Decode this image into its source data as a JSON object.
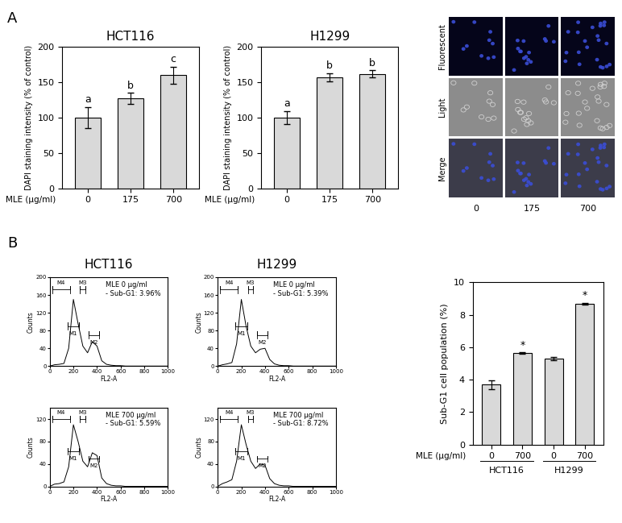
{
  "panel_labels": [
    "A",
    "B"
  ],
  "chart_data": [
    {
      "type": "bar",
      "title": "HCT116",
      "categories": [
        "0",
        "175",
        "700"
      ],
      "values": [
        100,
        127,
        160
      ],
      "error": [
        15,
        8,
        12
      ],
      "annotations": [
        "a",
        "b",
        "c"
      ],
      "xlabel": "MLE (µg/ml)",
      "ylabel": "DAPI staining intensity (% of control)",
      "ylim": [
        0,
        200
      ],
      "yticks": [
        0,
        50,
        100,
        150,
        200
      ],
      "color": "#d9d9d9"
    },
    {
      "type": "bar",
      "title": "H1299",
      "categories": [
        "0",
        "175",
        "700"
      ],
      "values": [
        100,
        157,
        162
      ],
      "error": [
        9,
        6,
        5
      ],
      "annotations": [
        "a",
        "b",
        "b"
      ],
      "xlabel": "MLE (µg/ml)",
      "ylabel": "DAPI staining intensity (% of control)",
      "ylim": [
        0,
        200
      ],
      "yticks": [
        0,
        50,
        100,
        150,
        200
      ],
      "color": "#d9d9d9"
    },
    {
      "type": "line",
      "title": "HCT116",
      "x": [
        0,
        40,
        80,
        120,
        160,
        200,
        240,
        280,
        320,
        360,
        400,
        440,
        480,
        520,
        560,
        600,
        640,
        680,
        720,
        760,
        800,
        840,
        880,
        920,
        960,
        1000
      ],
      "values": [
        0,
        3,
        4,
        6,
        40,
        150,
        95,
        45,
        30,
        55,
        45,
        12,
        4,
        2,
        1,
        1,
        0,
        0,
        0,
        0,
        0,
        0,
        0,
        0,
        0,
        0
      ],
      "color": "#000000",
      "xlim": [
        0,
        1000
      ],
      "xticks": [
        0,
        200,
        400,
        600,
        800,
        1000
      ],
      "ylim": [
        0,
        200
      ],
      "yticks": [
        0,
        40,
        80,
        120,
        160,
        200
      ],
      "xlabel": "FL2-A",
      "ylabel": "Counts",
      "text_lines": [
        "MLE 0 µg/ml",
        "- Sub-G1: 3.96%"
      ],
      "gates": [
        {
          "label": "M4",
          "range": [
            20,
            170
          ]
        },
        {
          "label": "M1",
          "range": [
            150,
            250
          ]
        },
        {
          "label": "M3",
          "range": [
            255,
            300
          ]
        },
        {
          "label": "M2",
          "range": [
            330,
            420
          ]
        }
      ]
    },
    {
      "type": "line",
      "title": "H1299",
      "x": [
        0,
        40,
        80,
        120,
        160,
        200,
        240,
        280,
        320,
        360,
        400,
        440,
        480,
        520,
        560,
        600,
        640,
        680,
        720,
        760,
        800,
        840,
        880,
        920,
        960,
        1000
      ],
      "values": [
        0,
        3,
        5,
        8,
        50,
        150,
        90,
        45,
        30,
        38,
        40,
        15,
        5,
        2,
        1,
        1,
        0,
        0,
        0,
        0,
        0,
        0,
        0,
        0,
        0,
        0
      ],
      "color": "#000000",
      "xlim": [
        0,
        1000
      ],
      "xticks": [
        0,
        200,
        400,
        600,
        800,
        1000
      ],
      "ylim": [
        0,
        200
      ],
      "yticks": [
        0,
        40,
        80,
        120,
        160,
        200
      ],
      "xlabel": "FL2-A",
      "ylabel": "Counts",
      "text_lines": [
        "MLE 0 µg/ml",
        "- Sub-G1: 5.39%"
      ],
      "gates": [
        {
          "label": "M4",
          "range": [
            20,
            170
          ]
        },
        {
          "label": "M1",
          "range": [
            150,
            250
          ]
        },
        {
          "label": "M3",
          "range": [
            255,
            300
          ]
        },
        {
          "label": "M2",
          "range": [
            330,
            420
          ]
        }
      ]
    },
    {
      "type": "line",
      "x": [
        0,
        40,
        80,
        120,
        160,
        200,
        240,
        280,
        320,
        360,
        400,
        440,
        480,
        520,
        560,
        600,
        640,
        680,
        720,
        760,
        800,
        840,
        880,
        920,
        960,
        1000
      ],
      "values": [
        0,
        4,
        5,
        8,
        35,
        110,
        80,
        45,
        35,
        60,
        55,
        15,
        5,
        2,
        1,
        1,
        0,
        0,
        0,
        0,
        0,
        0,
        0,
        0,
        0,
        0
      ],
      "color": "#000000",
      "xlim": [
        0,
        1000
      ],
      "xticks": [
        0,
        200,
        400,
        600,
        800,
        1000
      ],
      "ylim": [
        0,
        140
      ],
      "yticks": [
        0,
        40,
        80,
        120
      ],
      "xlabel": "FL2-A",
      "ylabel": "Counts",
      "text_lines": [
        "MLE 700 µg/ml",
        "- Sub-G1: 5.59%"
      ],
      "gates": [
        {
          "label": "M4",
          "range": [
            20,
            170
          ]
        },
        {
          "label": "M1",
          "range": [
            150,
            250
          ]
        },
        {
          "label": "M3",
          "range": [
            255,
            300
          ]
        },
        {
          "label": "M2",
          "range": [
            330,
            420
          ]
        }
      ]
    },
    {
      "type": "line",
      "x": [
        0,
        40,
        80,
        120,
        160,
        200,
        240,
        280,
        320,
        360,
        400,
        440,
        480,
        520,
        560,
        600,
        640,
        680,
        720,
        760,
        800,
        840,
        880,
        920,
        960,
        1000
      ],
      "values": [
        0,
        5,
        8,
        12,
        45,
        110,
        75,
        45,
        32,
        40,
        38,
        14,
        5,
        2,
        1,
        1,
        0,
        0,
        0,
        0,
        0,
        0,
        0,
        0,
        0,
        0
      ],
      "color": "#000000",
      "xlim": [
        0,
        1000
      ],
      "xticks": [
        0,
        200,
        400,
        600,
        800,
        1000
      ],
      "ylim": [
        0,
        140
      ],
      "yticks": [
        0,
        40,
        80,
        120
      ],
      "xlabel": "FL2-A",
      "ylabel": "Counts",
      "text_lines": [
        "MLE 700 µg/ml",
        "- Sub-G1: 8.72%"
      ],
      "gates": [
        {
          "label": "M4",
          "range": [
            20,
            170
          ]
        },
        {
          "label": "M1",
          "range": [
            150,
            250
          ]
        },
        {
          "label": "M3",
          "range": [
            255,
            300
          ]
        },
        {
          "label": "M2",
          "range": [
            330,
            420
          ]
        }
      ]
    },
    {
      "type": "bar",
      "categories": [
        "0",
        "700",
        "0",
        "700"
      ],
      "group_labels": [
        "HCT116",
        "H1299"
      ],
      "values": [
        3.7,
        5.63,
        5.3,
        8.7
      ],
      "error": [
        0.28,
        0.05,
        0.1,
        0.05
      ],
      "annotations": [
        null,
        "*",
        null,
        "*"
      ],
      "xlabel": "MLE (µg/ml)",
      "ylabel": "Sub-G1 cell population (%)",
      "ylim": [
        0,
        10
      ],
      "yticks": [
        0,
        2,
        4,
        6,
        8,
        10
      ],
      "color": "#d9d9d9"
    }
  ],
  "micrograph": {
    "row_labels": [
      "Fluorescent",
      "Light",
      "Merge"
    ],
    "column_labels": [
      "0",
      "175",
      "700"
    ]
  }
}
